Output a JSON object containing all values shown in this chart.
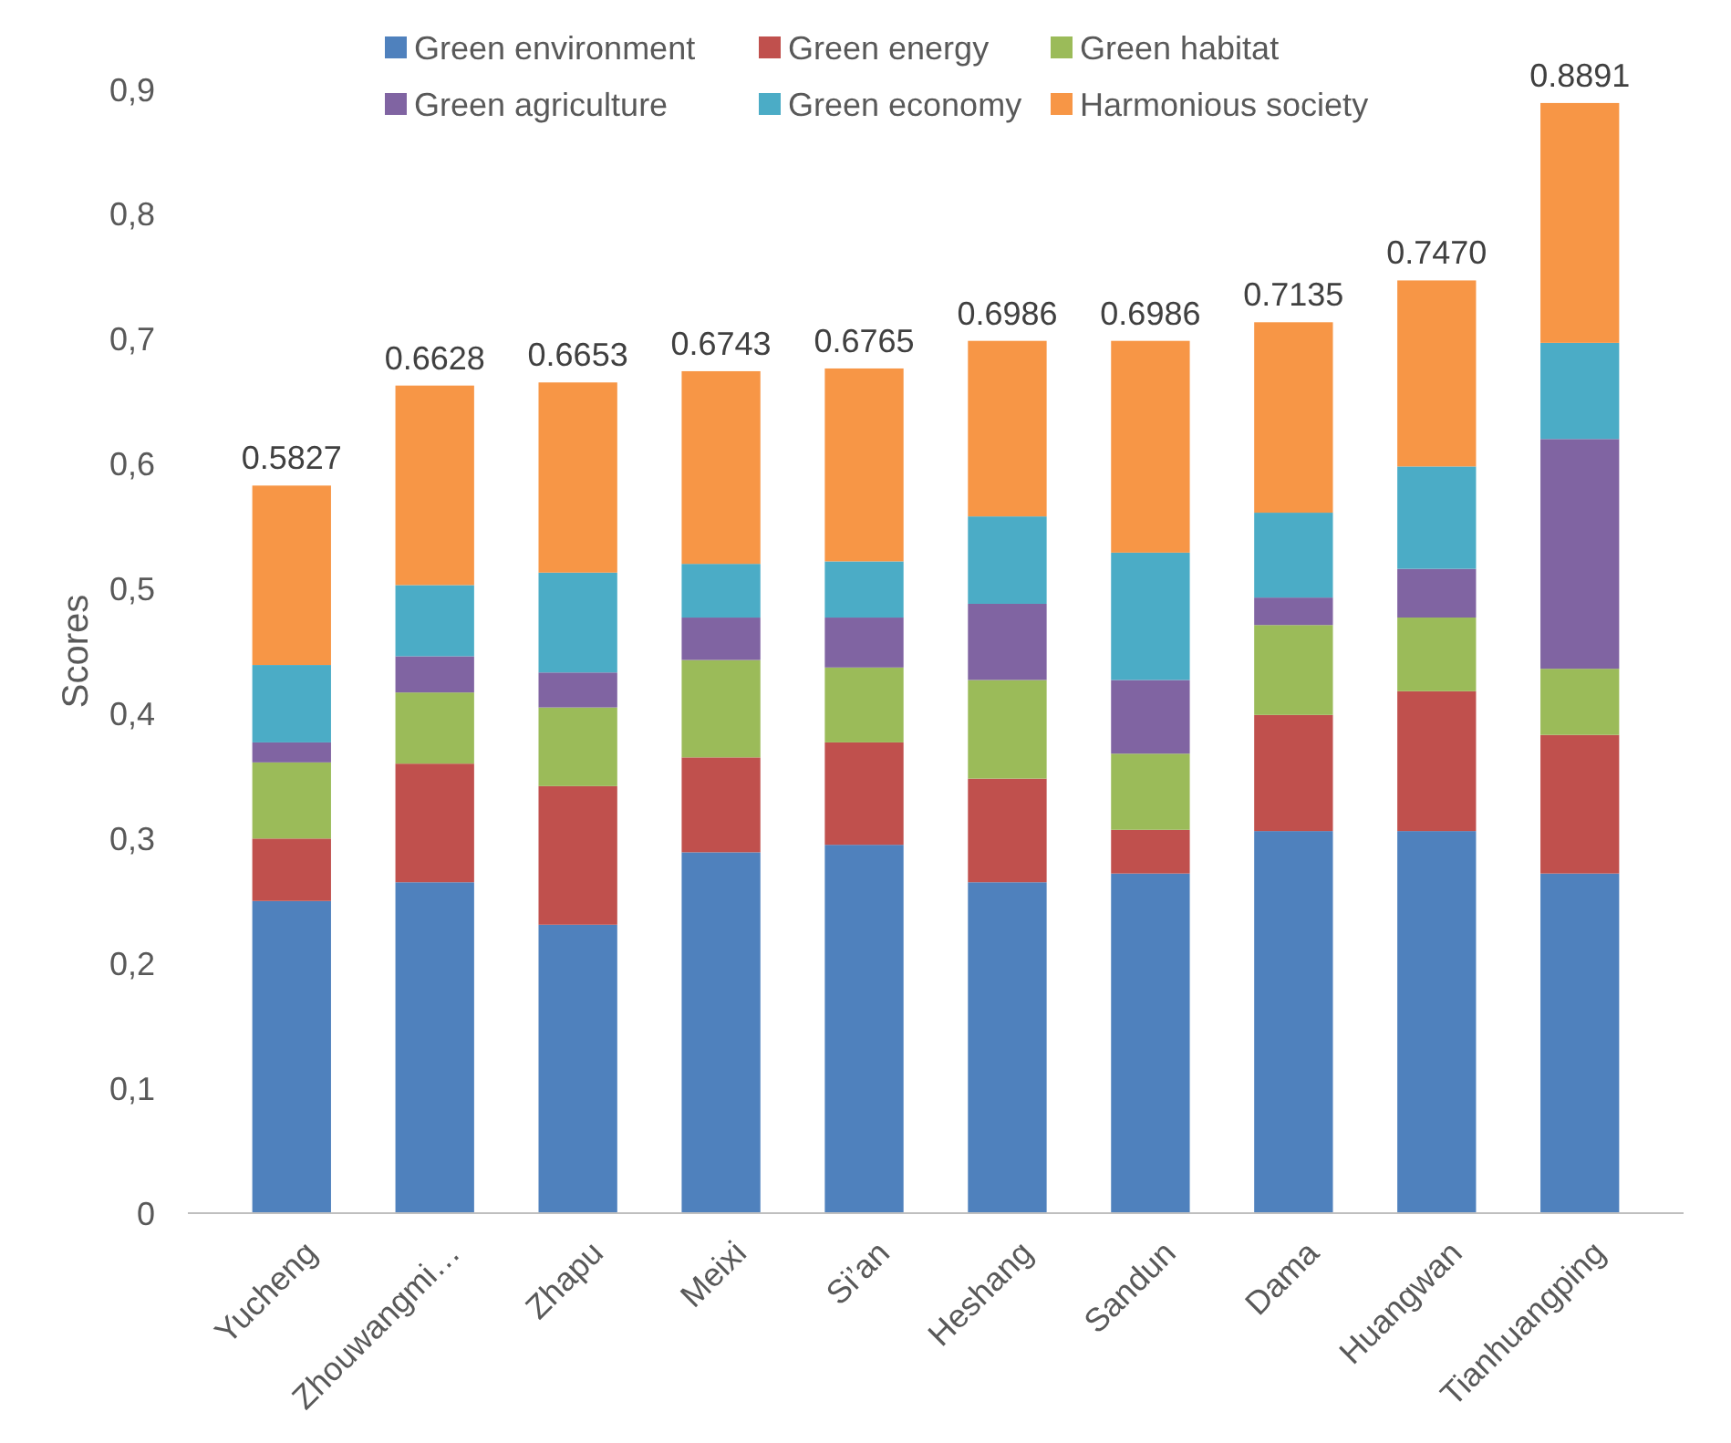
{
  "chart_data": {
    "type": "bar",
    "stacked": true,
    "ylabel": "Scores",
    "categories": [
      "Yucheng",
      "Zhouwangmi…",
      "Zhapu",
      "Meixi",
      "Si’an",
      "Heshang",
      "Sandun",
      "Dama",
      "Huangwan",
      "Tianhuangping"
    ],
    "series": [
      {
        "name": "Green environment",
        "color": "#4f81bd",
        "values": [
          0.25,
          0.265,
          0.231,
          0.289,
          0.295,
          0.265,
          0.272,
          0.306,
          0.306,
          0.272
        ]
      },
      {
        "name": "Green energy",
        "color": "#c0504d",
        "values": [
          0.05,
          0.095,
          0.111,
          0.076,
          0.082,
          0.083,
          0.035,
          0.093,
          0.112,
          0.111
        ]
      },
      {
        "name": "Green habitat",
        "color": "#9bbb59",
        "values": [
          0.061,
          0.057,
          0.063,
          0.078,
          0.06,
          0.079,
          0.061,
          0.072,
          0.059,
          0.053
        ]
      },
      {
        "name": "Green agriculture",
        "color": "#8064a2",
        "values": [
          0.016,
          0.029,
          0.028,
          0.034,
          0.04,
          0.061,
          0.059,
          0.022,
          0.039,
          0.184
        ]
      },
      {
        "name": "Green economy",
        "color": "#4bacc6",
        "values": [
          0.062,
          0.057,
          0.08,
          0.043,
          0.045,
          0.07,
          0.102,
          0.068,
          0.082,
          0.077
        ]
      },
      {
        "name": "Harmonious society",
        "color": "#f79646",
        "values": [
          0.1437,
          0.1598,
          0.1523,
          0.1543,
          0.1545,
          0.1406,
          0.1696,
          0.1525,
          0.149,
          0.1921
        ]
      }
    ],
    "totals": [
      "0.5827",
      "0.6628",
      "0.6653",
      "0.6743",
      "0.6765",
      "0.6986",
      "0.6986",
      "0.7135",
      "0.7470",
      "0.8891"
    ],
    "ylim": [
      0,
      0.9
    ],
    "yticks": [
      {
        "value": 0,
        "label": "0"
      },
      {
        "value": 0.1,
        "label": "0,1"
      },
      {
        "value": 0.2,
        "label": "0,2"
      },
      {
        "value": 0.3,
        "label": "0,3"
      },
      {
        "value": 0.4,
        "label": "0,4"
      },
      {
        "value": 0.5,
        "label": "0,5"
      },
      {
        "value": 0.6,
        "label": "0,6"
      },
      {
        "value": 0.7,
        "label": "0,7"
      },
      {
        "value": 0.8,
        "label": "0,8"
      },
      {
        "value": 0.9,
        "label": "0,9"
      }
    ],
    "grid": false,
    "legend": "top"
  }
}
